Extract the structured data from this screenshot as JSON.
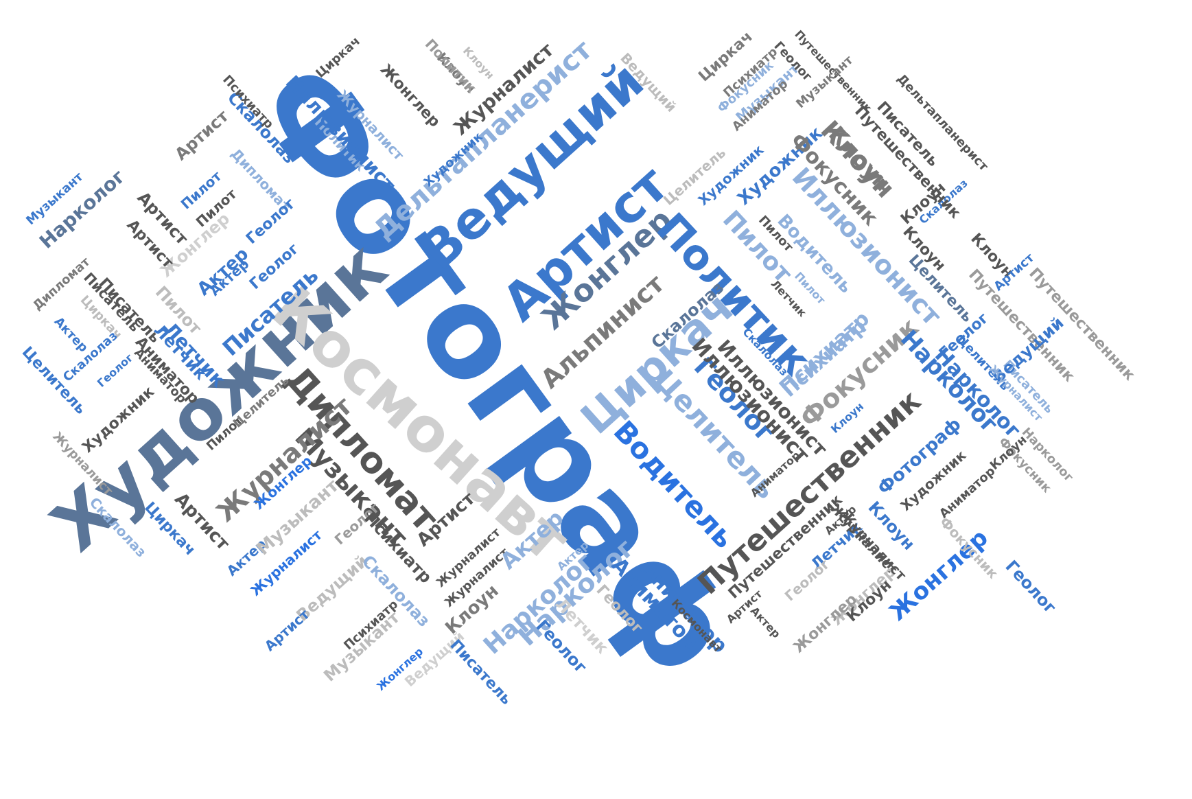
{
  "palette": {
    "blue": "#3b78cc",
    "bright_blue": "#2a72e0",
    "light_blue": "#8fb0dc",
    "pale_blue": "#a8c4e8",
    "steel": "#5a7598",
    "dark_gray": "#555555",
    "mid_gray": "#7a7a7a",
    "light_gray": "#bcbcbc",
    "pale_gray": "#cfcfcf"
  },
  "words": [
    "Фотограф",
    "Художник",
    "Космонавт",
    "Дипломат",
    "Ведущий",
    "Артист",
    "Жонглер",
    "Политик",
    "Циркач",
    "Дельтапланерист",
    "Альпинист",
    "Путешественник",
    "Музыкант",
    "Водитель",
    "Целитель",
    "Геолог",
    "Иллюзионист",
    "Фокусник",
    "Клоун",
    "Нарколог",
    "Журналист",
    "Психиатр",
    "Писатель",
    "Летчик",
    "Скалолаз",
    "Аниматор",
    "Актер",
    "Пилот",
    "Иллюзионист",
    "Художник",
    "Жонглер",
    "Журналист",
    "Путешественник",
    "Клоун",
    "Аниматор",
    "Нарколог",
    "Политик",
    "Артист",
    "Скалолаз",
    "Пилот",
    "Дипломат",
    "Геолог",
    "Артист",
    "Жонглер",
    "Актер",
    "Геолог",
    "Писатель",
    "Музыкант",
    "Нарколог",
    "Артист",
    "Пилот",
    "Дипломат",
    "Писатель",
    "Циркач",
    "Пилот",
    "Летчик",
    "Актер",
    "Скалолаз",
    "Геолог",
    "Целитель",
    "Аниматор",
    "Художник",
    "Журналист",
    "Пилот",
    "Целитель",
    "Жонглер",
    "Журналист",
    "Артист",
    "Циркач",
    "Скалолаз",
    "Актер",
    "Музыкант",
    "Геолог",
    "Журналист",
    "Ведущий",
    "Психиатр",
    "Скалолаз",
    "Артист",
    "Психиатр",
    "Музыкант",
    "Жонглер",
    "Ведущий",
    "Писатель",
    "Клоун",
    "Журналист",
    "Артист",
    "Актер",
    "Актер",
    "Нарколог",
    "Аниматор",
    "Геолог",
    "Летчик",
    "Геолог",
    "Космонавт",
    "Ведущий",
    "Клоун",
    "Художник",
    "Целитель",
    "Художник",
    "Циркач",
    "Психиатр",
    "Путешественник",
    "Фокусник",
    "Клоун",
    "Музыкант",
    "Дельтапланерист",
    "Писатель",
    "Скалолаз",
    "Клоун",
    "Пилот",
    "Водитель",
    "Летчик",
    "Пилот",
    "Клоун",
    "Скалолаз",
    "Целитель",
    "Артист",
    "Путешественник",
    "Геолог",
    "Целитель",
    "Писатель",
    "Фокусник",
    "Нарколог",
    "Клоун",
    "Психиатр",
    "Иллюзионист",
    "Фотограф",
    "Художник",
    "Аниматор",
    "Клоун",
    "Журналист",
    "Летчик",
    "Жонглер",
    "Геолог",
    "Фокусник",
    "Геолог",
    "Актер",
    "Артист",
    "Актер",
    "Жонглер",
    "Клоун",
    "Путешественник",
    "Журналист",
    "Аниматор",
    "Клоун",
    "Нарколог",
    "Ведущий",
    "Журналист",
    "Путешественник",
    "Музыкант",
    "Циркач",
    "Психиатр",
    "Журналист",
    "Иллюзионист",
    "Политик",
    "Жонглер",
    "Клоун",
    "Аниматор",
    "Фокусник",
    "Геолог",
    "Актер",
    "Артист"
  ]
}
